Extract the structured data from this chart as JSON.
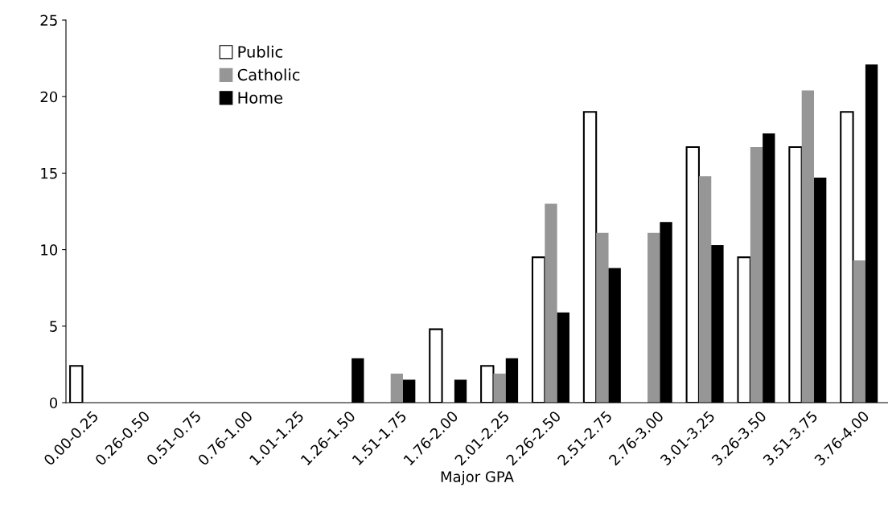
{
  "chart_data": {
    "type": "bar",
    "xlabel": "Major GPA",
    "categories": [
      "0.00-0.25",
      "0.26-0.50",
      "0.51-0.75",
      "0.76-1.00",
      "1.01-1.25",
      "1.26-1.50",
      "1.51-1.75",
      "1.76-2.00",
      "2.01-2.25",
      "2.26-2.50",
      "2.51-2.75",
      "2.76-3.00",
      "3.01-3.25",
      "3.26-3.50",
      "3.51-3.75",
      "3.76-4.00"
    ],
    "series": [
      {
        "name": "Public",
        "color": "#ffffff",
        "values": [
          2.4,
          null,
          null,
          null,
          null,
          null,
          null,
          4.8,
          2.4,
          9.5,
          19.0,
          null,
          16.7,
          9.5,
          16.7,
          19.0
        ]
      },
      {
        "name": "Catholic",
        "color": "#969696",
        "values": [
          null,
          null,
          null,
          null,
          null,
          null,
          1.9,
          null,
          1.9,
          13.0,
          11.1,
          11.1,
          14.8,
          16.7,
          20.4,
          9.3
        ]
      },
      {
        "name": "Home",
        "color": "#000000",
        "values": [
          null,
          null,
          null,
          null,
          null,
          2.9,
          1.5,
          1.5,
          2.9,
          5.9,
          8.8,
          11.8,
          10.3,
          17.6,
          14.7,
          22.1
        ]
      }
    ],
    "ylim": [
      0,
      25
    ],
    "yticks": [
      0,
      5,
      10,
      15,
      20,
      25
    ],
    "grid": false,
    "legend": "top left"
  }
}
